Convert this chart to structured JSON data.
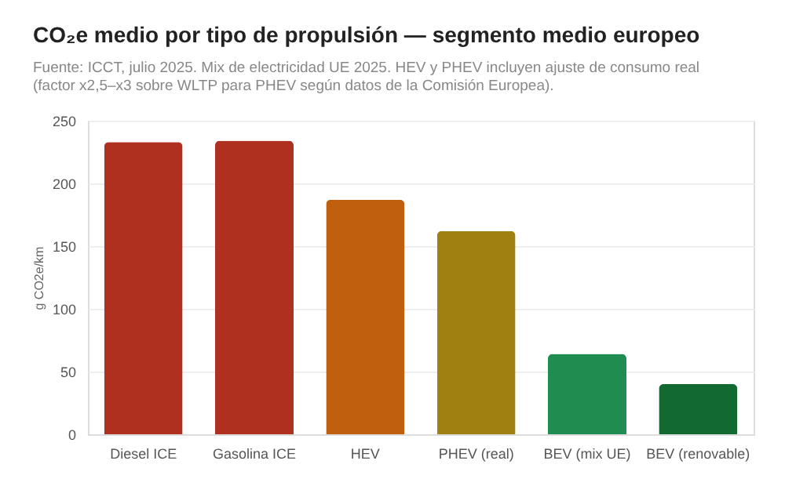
{
  "chart_data": {
    "type": "bar",
    "title": "CO₂e medio por tipo de propulsión — segmento medio europeo",
    "subtitle": "Fuente: ICCT, julio 2025. Mix de electricidad UE 2025. HEV y PHEV incluyen ajuste de consumo real (factor x2,5–x3 sobre WLTP para PHEV según datos de la Comisión Europea).",
    "ylabel": "g CO2e/km",
    "categories": [
      "Diesel ICE",
      "Gasolina ICE",
      "HEV",
      "PHEV (real)",
      "BEV (mix UE)",
      "BEV (renovable)"
    ],
    "values": [
      233,
      234,
      187,
      162,
      64,
      40
    ],
    "colors": [
      "#b03020",
      "#b03020",
      "#c0600f",
      "#a08010",
      "#1f8c50",
      "#126a30"
    ],
    "ylim": [
      0,
      250
    ],
    "yticks": [
      0,
      50,
      100,
      150,
      200,
      250
    ],
    "grid": "y"
  }
}
